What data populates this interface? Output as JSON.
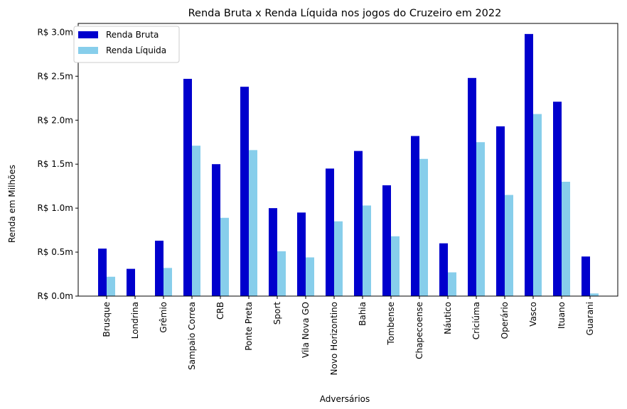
{
  "chart_data": {
    "type": "bar",
    "title": "Renda Bruta x Renda Líquida nos jogos do Cruzeiro em 2022",
    "xlabel": "Adversários",
    "ylabel": "Renda em Milhões",
    "ylim": [
      0,
      3.1
    ],
    "yticks": [
      {
        "value": 0.0,
        "label": "R$ 0.0m"
      },
      {
        "value": 0.5,
        "label": "R$ 0.5m"
      },
      {
        "value": 1.0,
        "label": "R$ 1.0m"
      },
      {
        "value": 1.5,
        "label": "R$ 1.5m"
      },
      {
        "value": 2.0,
        "label": "R$ 2.0m"
      },
      {
        "value": 2.5,
        "label": "R$ 2.5m"
      },
      {
        "value": 3.0,
        "label": "R$ 3.0m"
      }
    ],
    "grid": false,
    "legend": "top-left",
    "categories": [
      "Brusque",
      "Londrina",
      "Grêmio",
      "Sampaio Correa",
      "CRB",
      "Ponte Preta",
      "Sport",
      "Vila Nova GO",
      "Novo Horizontino",
      "Bahia",
      "Tombense",
      "Chapecoense",
      "Náutico",
      "Criciúma",
      "Operário",
      "Vasco",
      "Ituano",
      "Guarani"
    ],
    "series": [
      {
        "name": "Renda Bruta",
        "color": "#0000cd",
        "values": [
          0.54,
          0.31,
          0.63,
          2.47,
          1.5,
          2.38,
          1.0,
          0.95,
          1.45,
          1.65,
          1.26,
          1.82,
          0.6,
          2.48,
          1.93,
          2.98,
          2.21,
          0.45
        ]
      },
      {
        "name": "Renda Líquida",
        "color": "#87ceeb",
        "values": [
          0.22,
          0.0,
          0.32,
          1.71,
          0.89,
          1.66,
          0.51,
          0.44,
          0.85,
          1.03,
          0.68,
          1.56,
          0.27,
          1.75,
          1.15,
          2.07,
          1.3,
          0.03
        ]
      }
    ]
  }
}
